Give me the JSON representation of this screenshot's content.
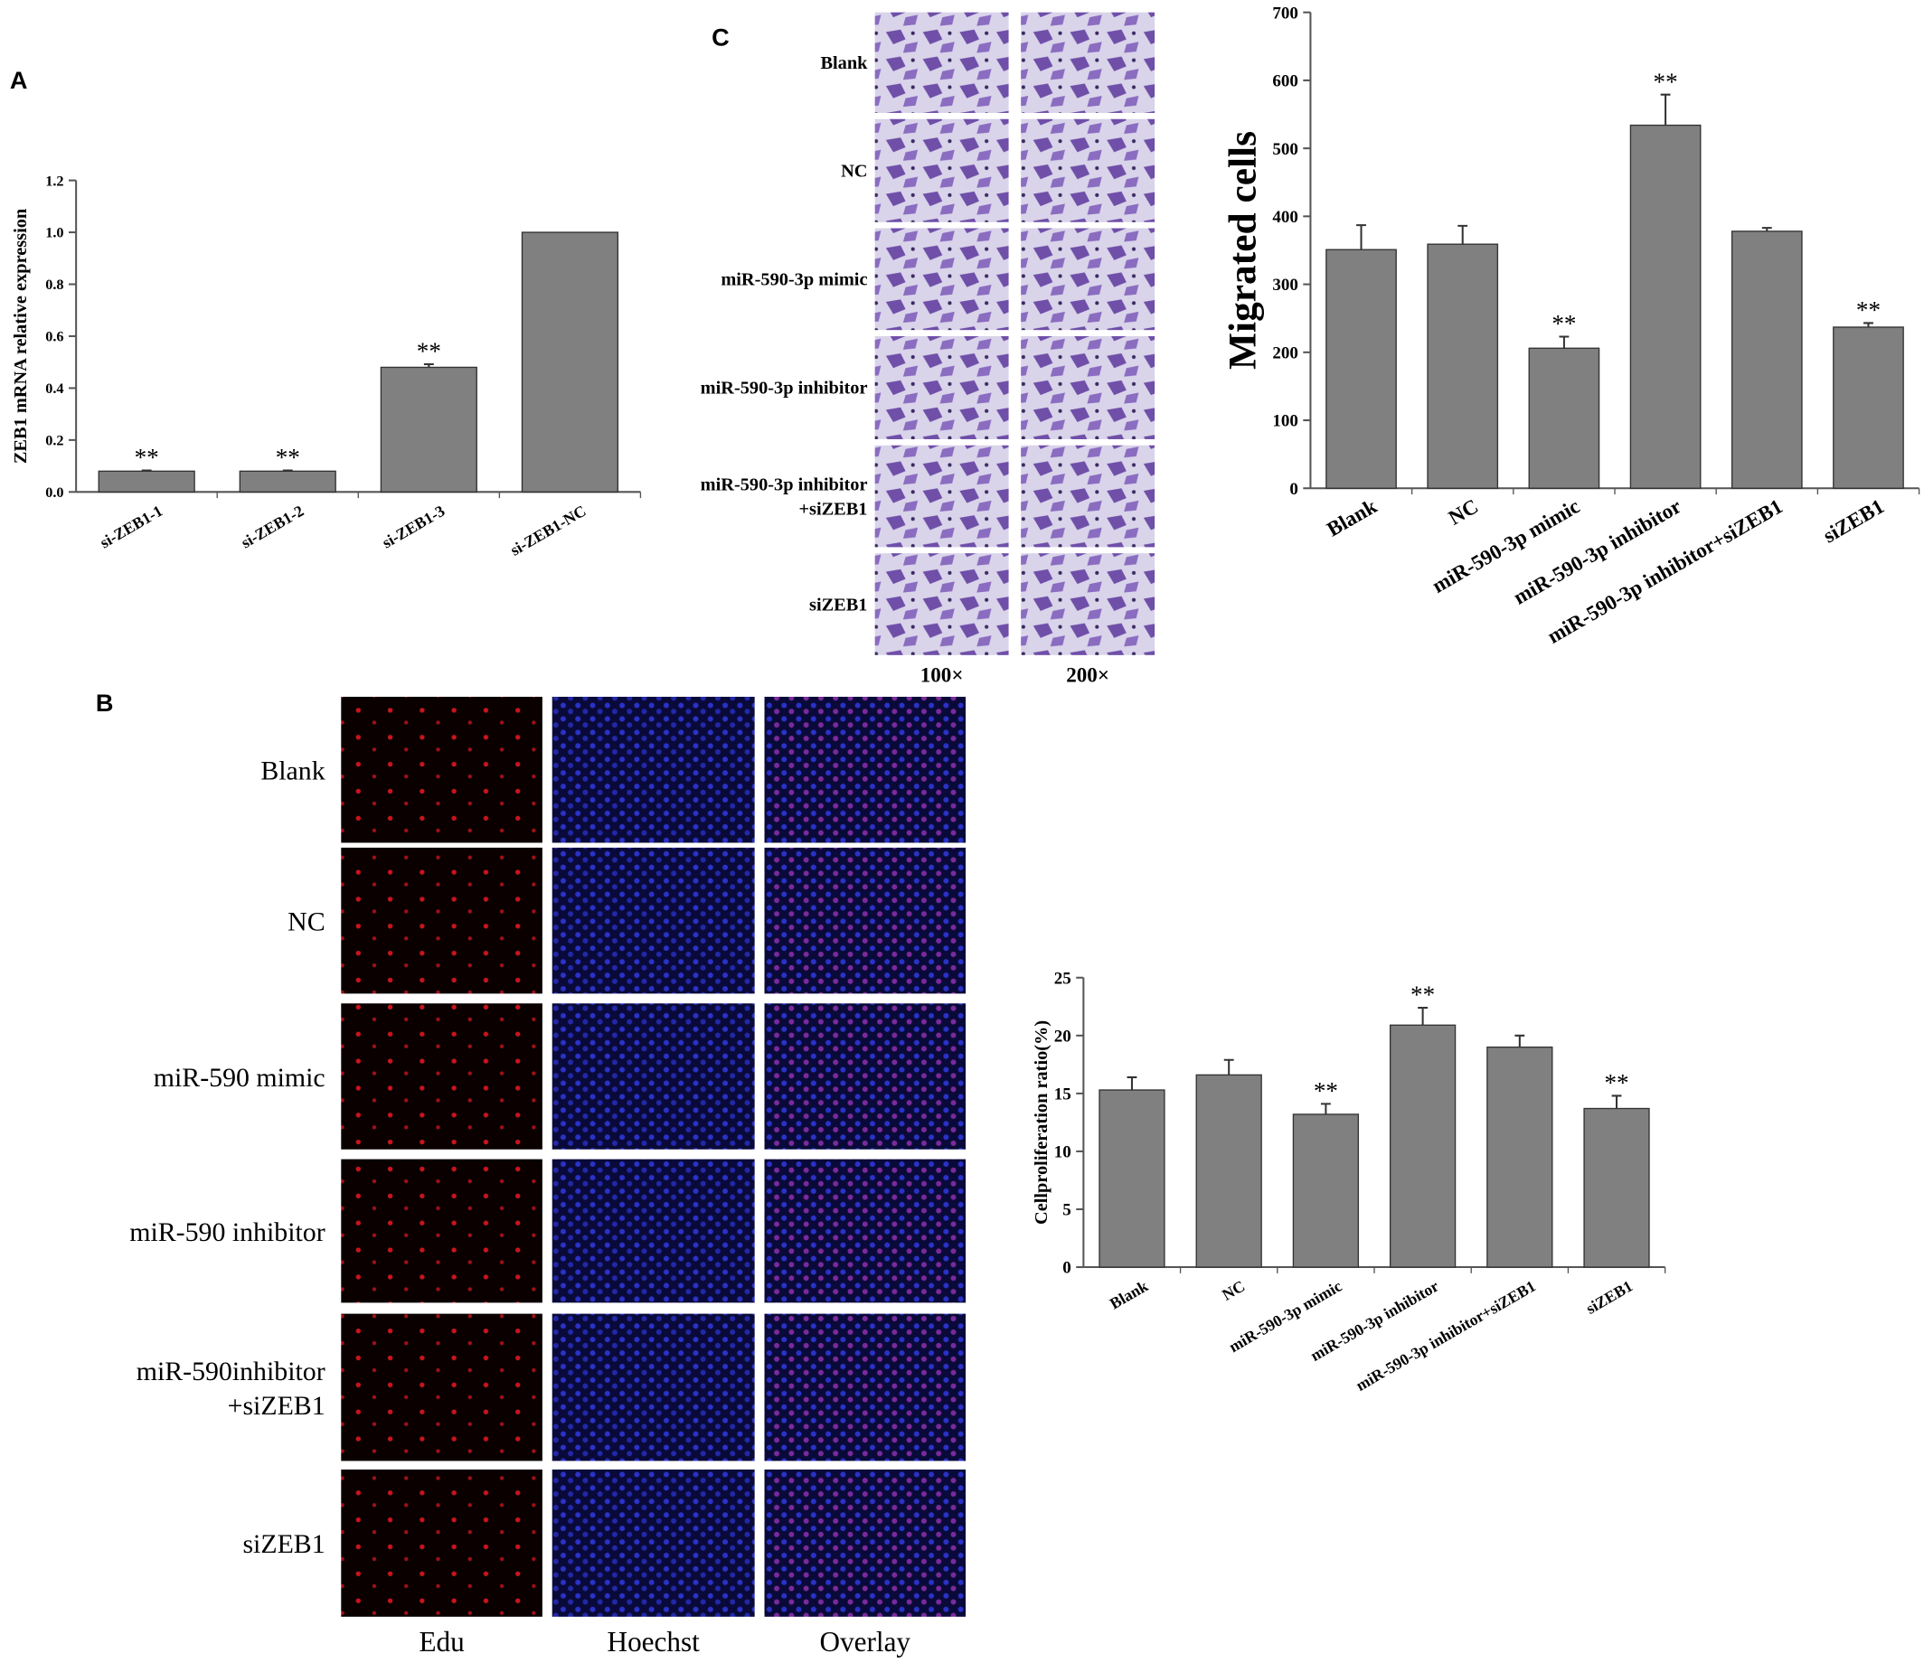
{
  "figure": {
    "panel_labels": [
      "A",
      "B",
      "C"
    ],
    "migration": {
      "row_labels": [
        [
          "Blank"
        ],
        [
          "NC"
        ],
        [
          "miR-590-3p mimic"
        ],
        [
          "miR-590-3p inhibitor"
        ],
        [
          "miR-590-3p inhibitor",
          "+siZEB1"
        ],
        [
          "siZEB1"
        ]
      ],
      "magnifications": [
        "100×",
        "200×"
      ]
    },
    "edu": {
      "row_labels": [
        [
          "Blank"
        ],
        [
          "NC"
        ],
        [
          "miR-590 mimic"
        ],
        [
          "miR-590 inhibitor"
        ],
        [
          "miR-590inhibitor",
          "+siZEB1"
        ],
        [
          "siZEB1"
        ]
      ],
      "column_labels": [
        "Edu",
        "Hoechst",
        "Overlay"
      ]
    }
  },
  "chart_data": [
    {
      "type": "bar",
      "ylabel": "ZEB1 mRNA relative expression",
      "categories": [
        "si-ZEB1-1",
        "si-ZEB1-2",
        "si-ZEB1-3",
        "si-ZEB1-NC"
      ],
      "values": [
        0.08,
        0.08,
        0.48,
        1.0
      ],
      "errors": [
        0.003,
        0.003,
        0.012,
        0
      ],
      "annotations": [
        "**",
        "**",
        "**",
        null
      ],
      "color": "#808080",
      "ylim": [
        0,
        1.2
      ],
      "yticks": [
        {
          "value": 0,
          "label": "0.0"
        },
        0.2,
        0.4,
        0.6,
        0.8,
        {
          "value": 1,
          "label": "1.0"
        },
        1.2
      ]
    },
    {
      "type": "bar",
      "ylabel": "Migrated cells",
      "categories": [
        "Blank",
        "NC",
        "miR-590-3p mimic",
        "miR-590-3p inhibitor",
        "miR-590-3p inhibitor+siZEB1",
        "siZEB1"
      ],
      "values": [
        351,
        359,
        206,
        534,
        378,
        237
      ],
      "errors": [
        36,
        27,
        17,
        45,
        5,
        6
      ],
      "annotations": [
        null,
        null,
        "**",
        "**",
        null,
        "**"
      ],
      "color": "#808080",
      "ylim": [
        0,
        700
      ],
      "yticks": [
        0,
        100,
        200,
        300,
        400,
        500,
        600,
        700
      ]
    },
    {
      "type": "bar",
      "ylabel": "Cellproliferation ratio(%)",
      "categories": [
        "Blank",
        "NC",
        "miR-590-3p mimic",
        "miR-590-3p inhibitor",
        "miR-590-3p inhibitor+siZEB1",
        "siZEB1"
      ],
      "values": [
        15.3,
        16.6,
        13.2,
        20.9,
        19.0,
        13.7
      ],
      "errors": [
        1.1,
        1.3,
        0.9,
        1.5,
        1.0,
        1.1
      ],
      "annotations": [
        null,
        null,
        "**",
        "**",
        null,
        "**"
      ],
      "color": "#808080",
      "ylim": [
        0,
        25
      ],
      "yticks": [
        0,
        5,
        10,
        15,
        20,
        25
      ]
    }
  ]
}
